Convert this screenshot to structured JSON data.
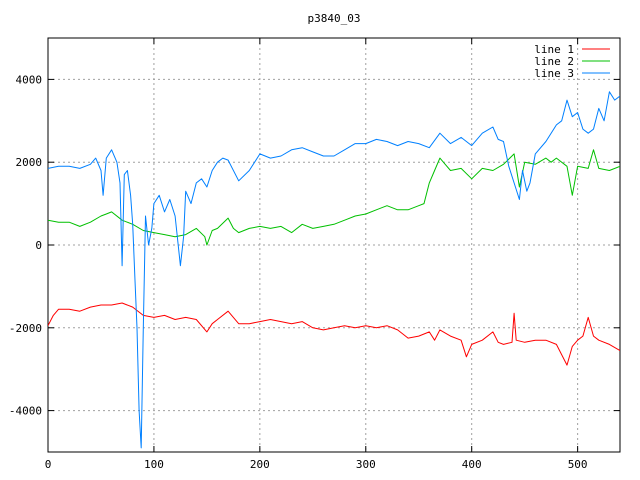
{
  "chart_data": {
    "type": "line",
    "title": "p3840_03",
    "xlabel": "",
    "ylabel": "",
    "xlim": [
      0,
      540
    ],
    "ylim": [
      -5000,
      5000
    ],
    "xticks": [
      0,
      100,
      200,
      300,
      400,
      500
    ],
    "yticks": [
      -4000,
      -2000,
      0,
      2000,
      4000
    ],
    "grid": true,
    "legend_position": "top-right",
    "series": [
      {
        "name": "line 1",
        "color": "#ff0000",
        "points": [
          [
            0,
            -1950
          ],
          [
            5,
            -1700
          ],
          [
            10,
            -1550
          ],
          [
            20,
            -1550
          ],
          [
            30,
            -1600
          ],
          [
            40,
            -1500
          ],
          [
            50,
            -1450
          ],
          [
            60,
            -1450
          ],
          [
            70,
            -1400
          ],
          [
            80,
            -1500
          ],
          [
            90,
            -1700
          ],
          [
            100,
            -1750
          ],
          [
            110,
            -1700
          ],
          [
            120,
            -1800
          ],
          [
            130,
            -1750
          ],
          [
            140,
            -1800
          ],
          [
            150,
            -2100
          ],
          [
            155,
            -1900
          ],
          [
            160,
            -1800
          ],
          [
            170,
            -1600
          ],
          [
            180,
            -1900
          ],
          [
            190,
            -1900
          ],
          [
            200,
            -1850
          ],
          [
            210,
            -1800
          ],
          [
            220,
            -1850
          ],
          [
            230,
            -1900
          ],
          [
            240,
            -1850
          ],
          [
            250,
            -2000
          ],
          [
            260,
            -2050
          ],
          [
            270,
            -2000
          ],
          [
            280,
            -1950
          ],
          [
            290,
            -2000
          ],
          [
            300,
            -1950
          ],
          [
            310,
            -2000
          ],
          [
            320,
            -1950
          ],
          [
            330,
            -2050
          ],
          [
            340,
            -2250
          ],
          [
            350,
            -2200
          ],
          [
            360,
            -2100
          ],
          [
            365,
            -2300
          ],
          [
            370,
            -2050
          ],
          [
            380,
            -2200
          ],
          [
            390,
            -2300
          ],
          [
            395,
            -2700
          ],
          [
            400,
            -2400
          ],
          [
            410,
            -2300
          ],
          [
            420,
            -2100
          ],
          [
            425,
            -2350
          ],
          [
            430,
            -2400
          ],
          [
            438,
            -2350
          ],
          [
            440,
            -1650
          ],
          [
            442,
            -2300
          ],
          [
            450,
            -2350
          ],
          [
            460,
            -2300
          ],
          [
            470,
            -2300
          ],
          [
            480,
            -2400
          ],
          [
            490,
            -2900
          ],
          [
            495,
            -2450
          ],
          [
            500,
            -2300
          ],
          [
            505,
            -2200
          ],
          [
            510,
            -1750
          ],
          [
            515,
            -2200
          ],
          [
            520,
            -2300
          ],
          [
            530,
            -2400
          ],
          [
            540,
            -2550
          ]
        ]
      },
      {
        "name": "line 2",
        "color": "#00c000",
        "points": [
          [
            0,
            600
          ],
          [
            10,
            550
          ],
          [
            20,
            550
          ],
          [
            30,
            450
          ],
          [
            40,
            550
          ],
          [
            50,
            700
          ],
          [
            55,
            750
          ],
          [
            60,
            800
          ],
          [
            70,
            600
          ],
          [
            80,
            500
          ],
          [
            90,
            350
          ],
          [
            100,
            300
          ],
          [
            110,
            250
          ],
          [
            120,
            200
          ],
          [
            130,
            250
          ],
          [
            140,
            400
          ],
          [
            148,
            200
          ],
          [
            150,
            0
          ],
          [
            155,
            350
          ],
          [
            160,
            400
          ],
          [
            170,
            650
          ],
          [
            175,
            400
          ],
          [
            180,
            300
          ],
          [
            190,
            400
          ],
          [
            200,
            450
          ],
          [
            210,
            400
          ],
          [
            220,
            450
          ],
          [
            230,
            300
          ],
          [
            240,
            500
          ],
          [
            250,
            400
          ],
          [
            260,
            450
          ],
          [
            270,
            500
          ],
          [
            280,
            600
          ],
          [
            290,
            700
          ],
          [
            300,
            750
          ],
          [
            310,
            850
          ],
          [
            320,
            950
          ],
          [
            330,
            850
          ],
          [
            340,
            850
          ],
          [
            350,
            950
          ],
          [
            355,
            1000
          ],
          [
            360,
            1500
          ],
          [
            365,
            1800
          ],
          [
            370,
            2100
          ],
          [
            375,
            1950
          ],
          [
            380,
            1800
          ],
          [
            390,
            1850
          ],
          [
            400,
            1600
          ],
          [
            410,
            1850
          ],
          [
            420,
            1800
          ],
          [
            430,
            1950
          ],
          [
            440,
            2200
          ],
          [
            445,
            1400
          ],
          [
            450,
            2000
          ],
          [
            460,
            1950
          ],
          [
            470,
            2100
          ],
          [
            475,
            2000
          ],
          [
            480,
            2100
          ],
          [
            490,
            1900
          ],
          [
            495,
            1200
          ],
          [
            500,
            1900
          ],
          [
            510,
            1850
          ],
          [
            515,
            2300
          ],
          [
            520,
            1850
          ],
          [
            530,
            1800
          ],
          [
            540,
            1900
          ]
        ]
      },
      {
        "name": "line 3",
        "color": "#0080ff",
        "points": [
          [
            0,
            1850
          ],
          [
            10,
            1900
          ],
          [
            20,
            1900
          ],
          [
            30,
            1850
          ],
          [
            40,
            1950
          ],
          [
            45,
            2100
          ],
          [
            50,
            1800
          ],
          [
            52,
            1200
          ],
          [
            55,
            2100
          ],
          [
            60,
            2300
          ],
          [
            65,
            2000
          ],
          [
            68,
            1500
          ],
          [
            70,
            -500
          ],
          [
            72,
            1700
          ],
          [
            75,
            1800
          ],
          [
            78,
            1200
          ],
          [
            80,
            500
          ],
          [
            82,
            -800
          ],
          [
            84,
            -2000
          ],
          [
            86,
            -4000
          ],
          [
            88,
            -4900
          ],
          [
            90,
            -2000
          ],
          [
            92,
            700
          ],
          [
            95,
            0
          ],
          [
            98,
            400
          ],
          [
            100,
            1000
          ],
          [
            105,
            1200
          ],
          [
            110,
            800
          ],
          [
            115,
            1100
          ],
          [
            120,
            700
          ],
          [
            125,
            -500
          ],
          [
            128,
            200
          ],
          [
            130,
            1300
          ],
          [
            135,
            1000
          ],
          [
            140,
            1500
          ],
          [
            145,
            1600
          ],
          [
            150,
            1400
          ],
          [
            155,
            1800
          ],
          [
            160,
            2000
          ],
          [
            165,
            2100
          ],
          [
            170,
            2050
          ],
          [
            180,
            1550
          ],
          [
            190,
            1800
          ],
          [
            200,
            2200
          ],
          [
            210,
            2100
          ],
          [
            220,
            2150
          ],
          [
            230,
            2300
          ],
          [
            240,
            2350
          ],
          [
            250,
            2250
          ],
          [
            260,
            2150
          ],
          [
            270,
            2150
          ],
          [
            280,
            2300
          ],
          [
            290,
            2450
          ],
          [
            300,
            2450
          ],
          [
            310,
            2550
          ],
          [
            320,
            2500
          ],
          [
            330,
            2400
          ],
          [
            340,
            2500
          ],
          [
            350,
            2450
          ],
          [
            360,
            2350
          ],
          [
            370,
            2700
          ],
          [
            380,
            2450
          ],
          [
            390,
            2600
          ],
          [
            400,
            2400
          ],
          [
            410,
            2700
          ],
          [
            420,
            2850
          ],
          [
            425,
            2550
          ],
          [
            430,
            2500
          ],
          [
            435,
            1900
          ],
          [
            440,
            1500
          ],
          [
            445,
            1100
          ],
          [
            448,
            1800
          ],
          [
            452,
            1300
          ],
          [
            455,
            1500
          ],
          [
            460,
            2200
          ],
          [
            470,
            2500
          ],
          [
            480,
            2900
          ],
          [
            485,
            3000
          ],
          [
            490,
            3500
          ],
          [
            495,
            3100
          ],
          [
            500,
            3200
          ],
          [
            505,
            2800
          ],
          [
            510,
            2700
          ],
          [
            515,
            2800
          ],
          [
            520,
            3300
          ],
          [
            525,
            3000
          ],
          [
            530,
            3700
          ],
          [
            535,
            3500
          ],
          [
            540,
            3600
          ]
        ]
      }
    ]
  }
}
